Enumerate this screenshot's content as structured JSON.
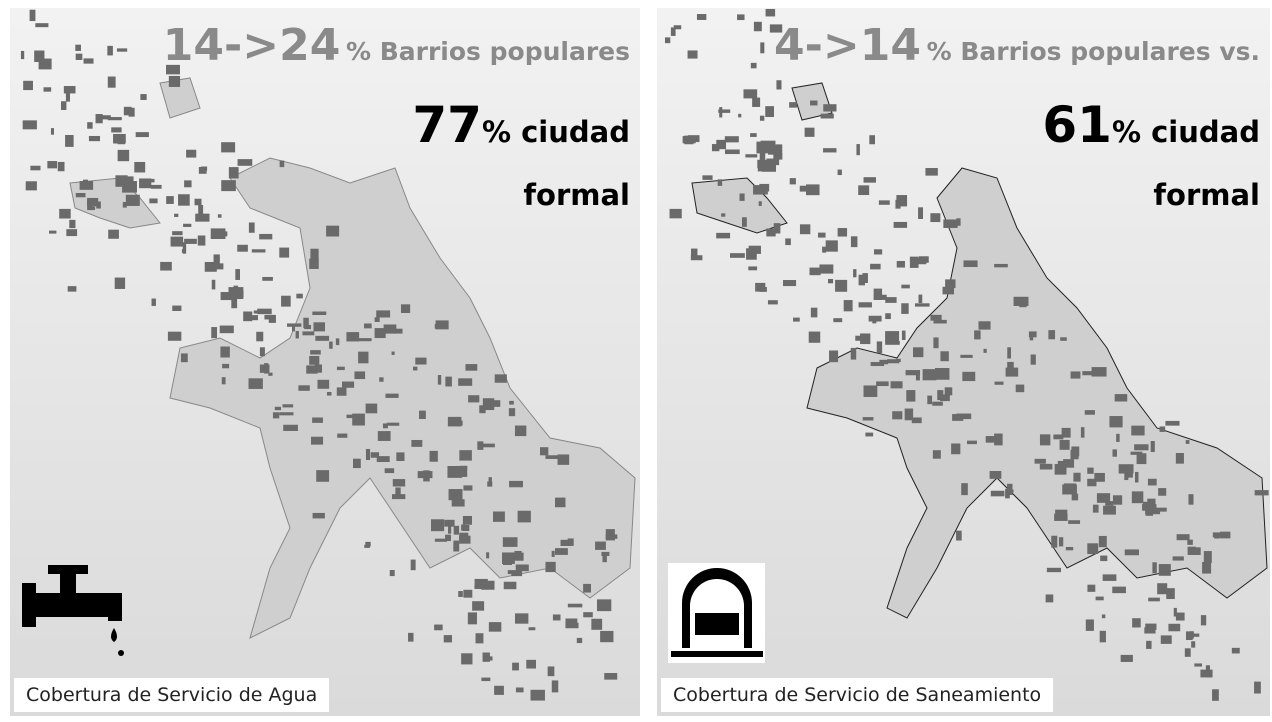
{
  "panels": [
    {
      "range": "14->24",
      "range_text": "% Barrios populares",
      "percent": 77,
      "percent_text": "% ciudad",
      "percent_text2": "formal",
      "caption": "Cobertura de Servicio de Agua"
    },
    {
      "range": "4->14",
      "range_text": "% Barrios populares vs.",
      "percent": 61,
      "percent_text": "% ciudad",
      "percent_text2": "formal",
      "caption": "Cobertura de Servicio de Saneamiento"
    }
  ]
}
